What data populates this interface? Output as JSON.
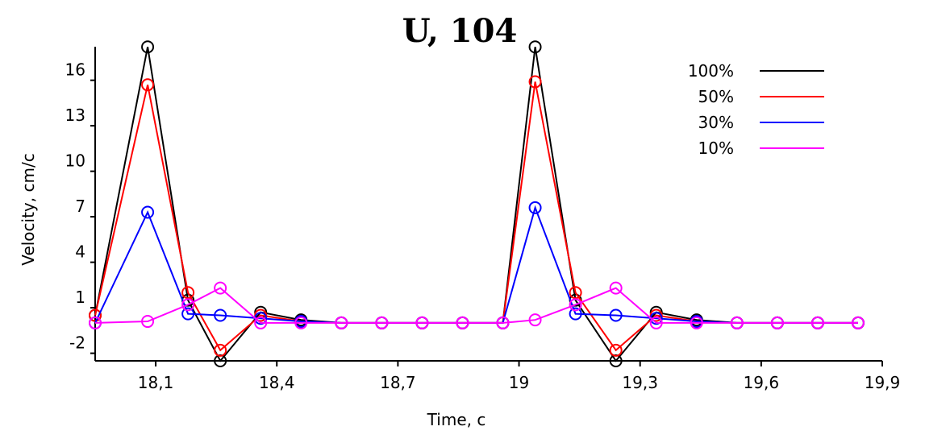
{
  "chart_data": {
    "type": "line",
    "title": "U, 104",
    "xlabel": "Time, c",
    "ylabel": "Velocity, cm/c",
    "xlim": [
      17.95,
      19.9
    ],
    "ylim": [
      -2.5,
      18
    ],
    "xticks": [
      18.1,
      18.4,
      18.7,
      19,
      19.3,
      19.6,
      19.9
    ],
    "xtick_labels": [
      "18,1",
      "18,4",
      "18,7",
      "19",
      "19,3",
      "19,6",
      "19,9"
    ],
    "yticks": [
      -2,
      1,
      4,
      7,
      10,
      13,
      16
    ],
    "ytick_labels": [
      "-2",
      "1",
      "4",
      "7",
      "10",
      "13",
      "16"
    ],
    "grid": false,
    "legend": "top-right",
    "x": [
      17.95,
      18.08,
      18.18,
      18.26,
      18.36,
      18.46,
      18.56,
      18.66,
      18.76,
      18.86,
      18.96,
      19.04,
      19.14,
      19.24,
      19.34,
      19.44,
      19.54,
      19.64,
      19.74,
      19.84
    ],
    "series": [
      {
        "name": "100%",
        "color": "#000000",
        "values": [
          0.5,
          18.2,
          1.5,
          -2.5,
          0.7,
          0.2,
          0,
          0,
          0,
          0,
          0,
          18.2,
          1.5,
          -2.5,
          0.7,
          0.2,
          0,
          0,
          0,
          0
        ]
      },
      {
        "name": "50%",
        "color": "#ff0000",
        "values": [
          0.5,
          15.7,
          2.0,
          -1.8,
          0.5,
          0.1,
          0,
          0,
          0,
          0,
          0,
          15.9,
          2.0,
          -1.8,
          0.5,
          0.1,
          0,
          0,
          0,
          0
        ]
      },
      {
        "name": "30%",
        "color": "#0000ff",
        "values": [
          0,
          7.3,
          0.6,
          0.5,
          0.3,
          0.1,
          0,
          0,
          0,
          0,
          0,
          7.6,
          0.6,
          0.5,
          0.3,
          0.1,
          0,
          0,
          0,
          0
        ]
      },
      {
        "name": "10%",
        "color": "#ff00ff",
        "values": [
          0,
          0.1,
          1.2,
          2.3,
          0,
          0,
          0,
          0,
          0,
          0,
          0,
          0.2,
          1.2,
          2.3,
          0,
          0,
          0,
          0,
          0,
          0
        ]
      }
    ]
  }
}
